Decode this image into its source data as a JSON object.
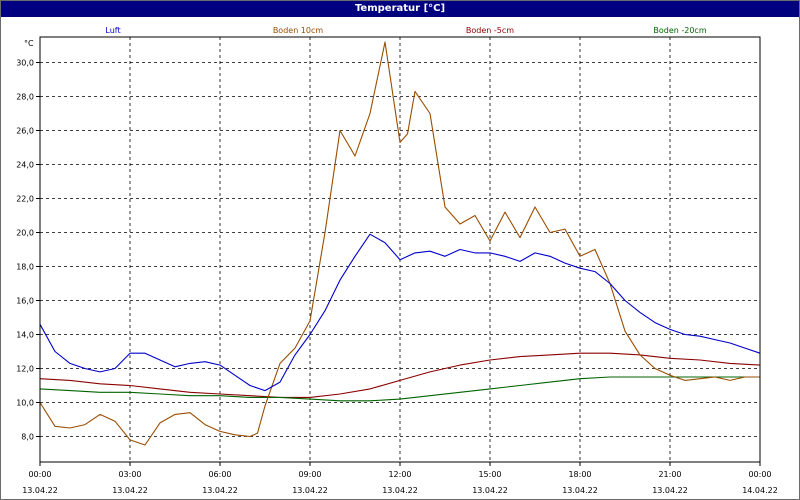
{
  "window": {
    "title": "Temperatur [°C]"
  },
  "colors": {
    "Luft": "#0000cc",
    "Boden 10cm": "#994d00",
    "Boden -5cm": "#8b0000",
    "Boden -20cm": "#006400"
  },
  "chart_data": {
    "type": "line",
    "title": "Temperatur [°C]",
    "ylabel": "°C",
    "ylim": [
      6.5,
      31.5
    ],
    "yticks": [
      8,
      10,
      12,
      14,
      16,
      18,
      20,
      22,
      24,
      26,
      28,
      30
    ],
    "yticklabels": [
      "8,0",
      "10,0",
      "12,0",
      "14,0",
      "16,0",
      "18,0",
      "20,0",
      "22,0",
      "24,0",
      "26,0",
      "28,0",
      "30,0"
    ],
    "xlim": [
      0,
      24
    ],
    "xticks": [
      0,
      3,
      6,
      9,
      12,
      15,
      18,
      21,
      24
    ],
    "xticklabels_time": [
      "00:00",
      "03:00",
      "06:00",
      "09:00",
      "12:00",
      "15:00",
      "18:00",
      "21:00",
      "00:00"
    ],
    "xticklabels_date": [
      "13.04.22",
      "13.04.22",
      "13.04.22",
      "13.04.22",
      "13.04.22",
      "13.04.22",
      "13.04.22",
      "13.04.22",
      "14.04.22"
    ],
    "grid": true,
    "legend_position": "top",
    "series": [
      {
        "name": "Luft",
        "x": [
          0,
          0.5,
          1,
          1.5,
          2,
          2.5,
          3,
          3.5,
          4,
          4.5,
          5,
          5.5,
          6,
          6.5,
          7,
          7.5,
          8,
          8.5,
          9,
          9.5,
          10,
          10.5,
          11,
          11.5,
          12,
          12.5,
          13,
          13.5,
          14,
          14.5,
          15,
          15.5,
          16,
          16.5,
          17,
          17.5,
          18,
          18.5,
          19,
          19.5,
          20,
          20.5,
          21,
          21.5,
          22,
          22.5,
          23,
          23.5,
          24
        ],
        "values": [
          14.6,
          13.0,
          12.3,
          12.0,
          11.8,
          12.0,
          12.9,
          12.9,
          12.5,
          12.1,
          12.3,
          12.4,
          12.2,
          11.6,
          11.0,
          10.7,
          11.2,
          12.8,
          14.0,
          15.4,
          17.2,
          18.6,
          19.9,
          19.4,
          18.4,
          18.8,
          18.9,
          18.6,
          19.0,
          18.8,
          18.8,
          18.6,
          18.3,
          18.8,
          18.6,
          18.2,
          17.9,
          17.7,
          17.0,
          16.0,
          15.3,
          14.7,
          14.3,
          14.0,
          13.9,
          13.7,
          13.5,
          13.2,
          12.9
        ]
      },
      {
        "name": "Boden 10cm",
        "x": [
          0,
          0.5,
          1,
          1.5,
          2,
          2.5,
          3,
          3.5,
          4,
          4.5,
          5,
          5.5,
          6,
          6.5,
          7,
          7.25,
          7.5,
          8,
          8.5,
          9,
          9.5,
          10,
          10.5,
          11,
          11.5,
          12,
          12.25,
          12.5,
          13,
          13.5,
          14,
          14.5,
          15,
          15.5,
          16,
          16.5,
          17,
          17.5,
          18,
          18.5,
          19,
          19.5,
          20,
          20.5,
          21,
          21.5,
          22,
          22.5,
          23,
          23.5,
          24
        ],
        "values": [
          10.0,
          8.6,
          8.5,
          8.7,
          9.3,
          8.9,
          7.8,
          7.5,
          8.8,
          9.3,
          9.4,
          8.7,
          8.3,
          8.1,
          8.0,
          8.2,
          9.8,
          12.3,
          13.2,
          14.8,
          20.0,
          26.0,
          24.5,
          27.0,
          31.2,
          25.3,
          25.8,
          28.3,
          27.0,
          21.5,
          20.5,
          21.0,
          19.5,
          21.2,
          19.7,
          21.5,
          20.0,
          20.2,
          18.6,
          19.0,
          17.0,
          14.2,
          12.8,
          12.0,
          11.6,
          11.3,
          11.4,
          11.5,
          11.3,
          11.5,
          11.5
        ]
      },
      {
        "name": "Boden -5cm",
        "x": [
          0,
          1,
          2,
          3,
          4,
          5,
          6,
          7,
          8,
          9,
          10,
          11,
          12,
          13,
          14,
          15,
          16,
          17,
          18,
          19,
          20,
          21,
          22,
          23,
          24
        ],
        "values": [
          11.4,
          11.3,
          11.1,
          11.0,
          10.8,
          10.6,
          10.5,
          10.4,
          10.3,
          10.3,
          10.5,
          10.8,
          11.3,
          11.8,
          12.2,
          12.5,
          12.7,
          12.8,
          12.9,
          12.9,
          12.8,
          12.6,
          12.5,
          12.3,
          12.2
        ]
      },
      {
        "name": "Boden -20cm",
        "x": [
          0,
          1,
          2,
          3,
          4,
          5,
          6,
          7,
          8,
          9,
          10,
          11,
          12,
          13,
          14,
          15,
          16,
          17,
          18,
          19,
          20,
          21,
          22,
          23,
          24
        ],
        "values": [
          10.8,
          10.7,
          10.6,
          10.6,
          10.5,
          10.4,
          10.4,
          10.3,
          10.3,
          10.2,
          10.1,
          10.1,
          10.2,
          10.4,
          10.6,
          10.8,
          11.0,
          11.2,
          11.4,
          11.5,
          11.5,
          11.5,
          11.5,
          11.5,
          11.5
        ]
      }
    ]
  }
}
